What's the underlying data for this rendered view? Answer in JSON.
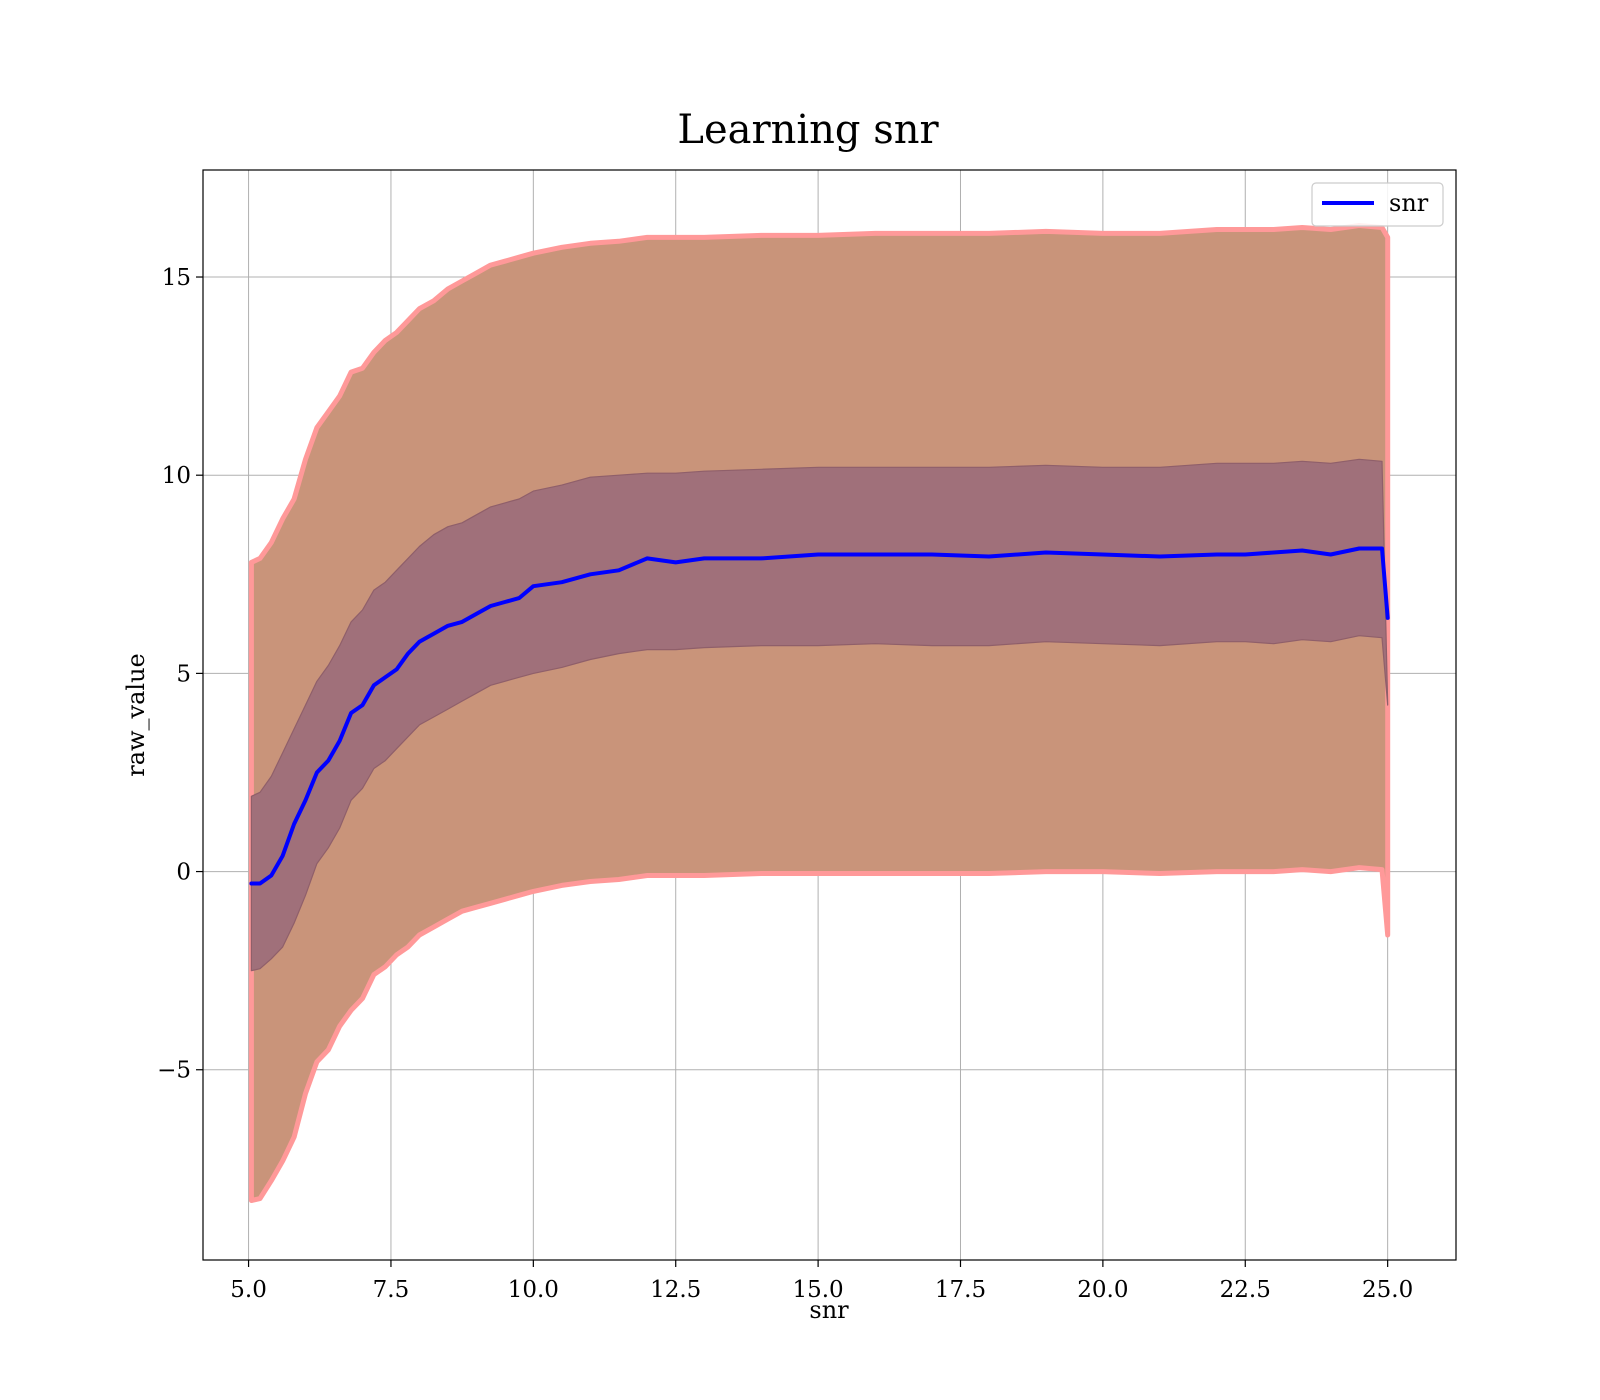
{
  "chart_data": {
    "type": "area",
    "title": "Learning snr",
    "xlabel": "snr",
    "ylabel": "raw_value",
    "xlim": [
      4.2,
      26.2
    ],
    "ylim": [
      -9.8,
      17.7
    ],
    "xticks": [
      5.0,
      7.5,
      10.0,
      12.5,
      15.0,
      17.5,
      20.0,
      22.5,
      25.0
    ],
    "xtick_labels": [
      "5.0",
      "7.5",
      "10.0",
      "12.5",
      "15.0",
      "17.5",
      "20.0",
      "22.5",
      "25.0"
    ],
    "yticks": [
      -5,
      0,
      5,
      10,
      15
    ],
    "ytick_labels": [
      "−5",
      "0",
      "5",
      "10",
      "15"
    ],
    "grid": true,
    "legend": {
      "position": "top-right",
      "entries": [
        "snr"
      ]
    },
    "colors": {
      "line": "#0000ff",
      "outer_band_edge": "#ff9999",
      "outer_band_fill": "#c9947a",
      "inner_band_fill": "#a0707a",
      "grid": "#b0b0b0",
      "axes": "#000000"
    },
    "x": [
      5.05,
      5.2,
      5.4,
      5.6,
      5.8,
      6.0,
      6.2,
      6.4,
      6.6,
      6.8,
      7.0,
      7.2,
      7.4,
      7.6,
      7.8,
      8.0,
      8.25,
      8.5,
      8.75,
      9.0,
      9.25,
      9.5,
      9.75,
      10.0,
      10.5,
      11.0,
      11.5,
      12.0,
      12.5,
      13.0,
      14.0,
      15.0,
      16.0,
      17.0,
      18.0,
      19.0,
      20.0,
      21.0,
      22.0,
      22.5,
      23.0,
      23.5,
      24.0,
      24.5,
      24.9,
      25.0
    ],
    "series": [
      {
        "name": "snr",
        "values": [
          -0.3,
          -0.3,
          -0.1,
          0.4,
          1.2,
          1.8,
          2.5,
          2.8,
          3.3,
          4.0,
          4.2,
          4.7,
          4.9,
          5.1,
          5.5,
          5.8,
          6.0,
          6.2,
          6.3,
          6.5,
          6.7,
          6.8,
          6.9,
          7.2,
          7.3,
          7.5,
          7.6,
          7.9,
          7.8,
          7.9,
          7.9,
          8.0,
          8.0,
          8.0,
          7.95,
          8.05,
          8.0,
          7.95,
          8.0,
          8.0,
          8.05,
          8.1,
          8.0,
          8.15,
          8.15,
          6.4
        ]
      }
    ],
    "inner_band": {
      "upper": [
        1.9,
        2.0,
        2.4,
        3.0,
        3.6,
        4.2,
        4.8,
        5.2,
        5.7,
        6.3,
        6.6,
        7.1,
        7.3,
        7.6,
        7.9,
        8.2,
        8.5,
        8.7,
        8.8,
        9.0,
        9.2,
        9.3,
        9.4,
        9.6,
        9.75,
        9.95,
        10.0,
        10.05,
        10.05,
        10.1,
        10.15,
        10.2,
        10.2,
        10.2,
        10.2,
        10.25,
        10.2,
        10.2,
        10.3,
        10.3,
        10.3,
        10.35,
        10.3,
        10.4,
        10.35,
        4.2
      ],
      "lower": [
        -2.5,
        -2.45,
        -2.2,
        -1.9,
        -1.3,
        -0.6,
        0.2,
        0.6,
        1.1,
        1.8,
        2.1,
        2.6,
        2.8,
        3.1,
        3.4,
        3.7,
        3.9,
        4.1,
        4.3,
        4.5,
        4.7,
        4.8,
        4.9,
        5.0,
        5.15,
        5.35,
        5.5,
        5.6,
        5.6,
        5.65,
        5.7,
        5.7,
        5.75,
        5.7,
        5.7,
        5.8,
        5.75,
        5.7,
        5.8,
        5.8,
        5.75,
        5.85,
        5.8,
        5.95,
        5.9,
        4.2
      ]
    },
    "outer_band": {
      "upper": [
        7.8,
        7.9,
        8.3,
        8.9,
        9.4,
        10.4,
        11.2,
        11.6,
        12.0,
        12.6,
        12.7,
        13.1,
        13.4,
        13.6,
        13.9,
        14.2,
        14.4,
        14.7,
        14.9,
        15.1,
        15.3,
        15.4,
        15.5,
        15.6,
        15.75,
        15.85,
        15.9,
        16.0,
        16.0,
        16.0,
        16.05,
        16.05,
        16.1,
        16.1,
        16.1,
        16.15,
        16.1,
        16.1,
        16.2,
        16.2,
        16.2,
        16.25,
        16.2,
        16.3,
        16.25,
        16.0
      ],
      "lower": [
        -8.3,
        -8.25,
        -7.8,
        -7.3,
        -6.7,
        -5.6,
        -4.8,
        -4.5,
        -3.9,
        -3.5,
        -3.2,
        -2.6,
        -2.4,
        -2.1,
        -1.9,
        -1.6,
        -1.4,
        -1.2,
        -1.0,
        -0.9,
        -0.8,
        -0.7,
        -0.6,
        -0.5,
        -0.35,
        -0.25,
        -0.2,
        -0.1,
        -0.1,
        -0.1,
        -0.05,
        -0.05,
        -0.05,
        -0.05,
        -0.05,
        0.0,
        0.0,
        -0.05,
        0.0,
        0.0,
        0.0,
        0.05,
        0.0,
        0.1,
        0.05,
        -1.6
      ]
    }
  }
}
